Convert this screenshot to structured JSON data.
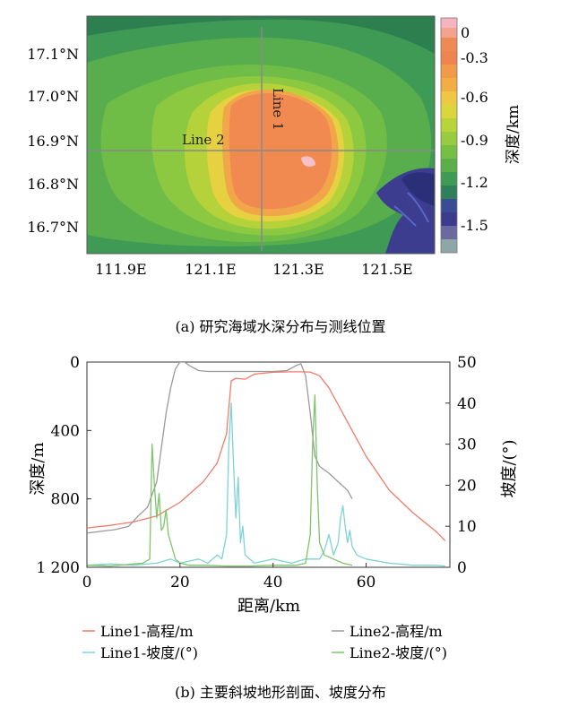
{
  "chart_data": [
    {
      "type": "heatmap",
      "title": "",
      "y_ticks": [
        "17.1°N",
        "17.0°N",
        "16.9°N",
        "16.8°N",
        "16.7°N"
      ],
      "x_ticks": [
        "111.9E",
        "121.1E",
        "121.3E",
        "121.5E"
      ],
      "colorbar": {
        "label": "深度/km",
        "ticks": [
          "0",
          "-0.3",
          "-0.6",
          "-0.9",
          "-1.2",
          "-1.5"
        ],
        "range": [
          -1.65,
          0.15
        ]
      },
      "annotations": [
        "Line 1",
        "Line 2"
      ],
      "caption": "(a)  研究海域水深分布与测线位置"
    },
    {
      "type": "line",
      "xlabel": "距离/km",
      "ylabel_left": "深度/m",
      "ylabel_right": "坡度/(°)",
      "xlim": [
        0,
        78
      ],
      "ylim_left": [
        1200,
        0
      ],
      "ylim_right": [
        0,
        50
      ],
      "x_ticks": [
        "0",
        "20",
        "40",
        "60"
      ],
      "y_left_ticks": [
        "0",
        "400",
        "800",
        "1 200"
      ],
      "y_right_ticks": [
        "0",
        "10",
        "20",
        "30",
        "40",
        "50"
      ],
      "series": [
        {
          "name": "Line1-高程/m",
          "color": "#f07a6a",
          "axis": "left",
          "x": [
            0,
            5,
            10,
            15,
            20,
            25,
            28,
            30,
            31,
            32,
            34,
            36,
            38,
            40,
            42,
            44,
            46,
            48,
            50,
            52,
            55,
            60,
            65,
            70,
            75,
            77
          ],
          "y": [
            970,
            955,
            935,
            900,
            820,
            700,
            590,
            420,
            110,
            95,
            100,
            70,
            65,
            60,
            58,
            57,
            57,
            58,
            80,
            150,
            300,
            550,
            750,
            880,
            990,
            1045
          ]
        },
        {
          "name": "Line2-高程/m",
          "color": "#9a9a9a",
          "axis": "left",
          "x": [
            0,
            3,
            6,
            9,
            11,
            13,
            15,
            16,
            17,
            18,
            19,
            20,
            21,
            22,
            24,
            26,
            30,
            35,
            40,
            43,
            45,
            46,
            47,
            48,
            49,
            50,
            52,
            54,
            56,
            57
          ],
          "y": [
            1000,
            990,
            980,
            960,
            900,
            850,
            700,
            500,
            300,
            150,
            40,
            0,
            0,
            20,
            50,
            55,
            55,
            55,
            55,
            50,
            20,
            10,
            80,
            300,
            550,
            610,
            650,
            700,
            750,
            800
          ]
        },
        {
          "name": "Line1-坡度/(°)",
          "color": "#7fd3d3",
          "axis": "right",
          "x": [
            0,
            5,
            10,
            15,
            18,
            20,
            22,
            24,
            26,
            28,
            29,
            30,
            30.5,
            31,
            31.5,
            32,
            32.5,
            33,
            33.5,
            34,
            36,
            40,
            44,
            47,
            50,
            51,
            52,
            53,
            54,
            54.5,
            55,
            55.5,
            56,
            56.5,
            57,
            58,
            60,
            65,
            70,
            75,
            77
          ],
          "y": [
            0.5,
            0.8,
            0.5,
            1,
            2,
            1,
            1.5,
            2,
            1,
            3,
            2,
            8,
            30,
            40,
            25,
            12,
            22,
            6,
            10,
            3,
            1,
            2,
            1,
            2,
            2,
            4,
            8,
            3,
            6,
            12,
            15,
            10,
            6,
            9,
            5,
            3,
            2,
            1,
            0.5,
            0.5,
            0.3
          ]
        },
        {
          "name": "Line2-坡度/(°)",
          "color": "#7ec46a",
          "axis": "right",
          "x": [
            0,
            5,
            10,
            12,
            13.5,
            14,
            14.5,
            15,
            15.5,
            16,
            16.5,
            17,
            17.5,
            18,
            19,
            20,
            22,
            25,
            30,
            35,
            40,
            45,
            47,
            48,
            48.5,
            49,
            49.5,
            50,
            51,
            53,
            55,
            57
          ],
          "y": [
            0.5,
            0.3,
            0.8,
            1,
            2,
            30,
            20,
            12,
            18,
            9,
            10,
            14,
            8,
            6,
            2,
            1,
            0.5,
            0.5,
            0.3,
            0.3,
            0.5,
            0.5,
            1,
            8,
            30,
            42,
            20,
            6,
            3,
            2,
            1,
            0.5
          ]
        }
      ],
      "legend": [
        "Line1-高程/m",
        "Line2-高程/m",
        "Line1-坡度/(°)",
        "Line2-坡度/(°)"
      ],
      "caption": "(b)  主要斜坡地形剖面、坡度分布"
    }
  ]
}
